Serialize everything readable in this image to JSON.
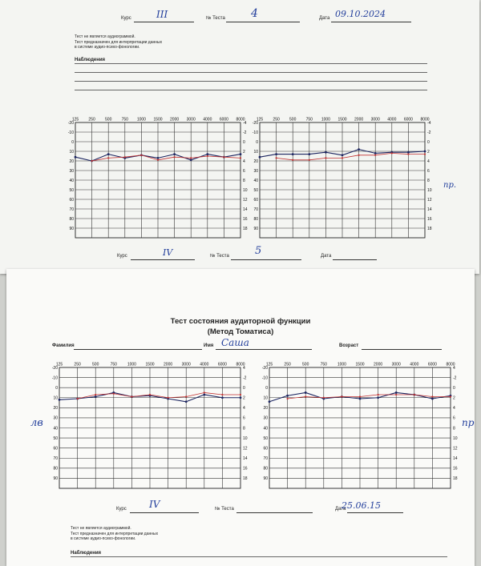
{
  "sheet1": {
    "header": {
      "course_label": "Курс",
      "course_value": "III",
      "test_no_label": "№ Теста",
      "test_no_value": "4",
      "date_label": "Дата",
      "date_value": "09.10.2024"
    },
    "notes": [
      "Тест не является аудиограммой.",
      "Тест предназначен для интерпретации данных",
      "в системе аудио-психо-фонологии."
    ],
    "observation_label": "Наблюдения",
    "left_chart": {
      "freqs": [
        "125",
        "250",
        "500",
        "750",
        "1000",
        "1500",
        "2000",
        "3000",
        "4000",
        "6000",
        "8000"
      ],
      "left_scale": [
        "-20",
        "-10",
        "0",
        "10",
        "20",
        "30",
        "40",
        "50",
        "60",
        "70",
        "80",
        "90"
      ],
      "right_scale": [
        "-4",
        "-2",
        "0",
        "2",
        "4",
        "6",
        "8",
        "10",
        "12",
        "14",
        "16",
        "18"
      ],
      "series": [
        {
          "color": "#1c2560",
          "values": [
            16,
            20,
            13,
            17,
            14,
            17,
            13,
            19,
            13,
            16,
            13
          ]
        },
        {
          "color": "#c03232",
          "values": [
            null,
            20,
            17,
            16,
            14,
            19,
            16,
            17,
            15,
            16,
            17
          ]
        }
      ]
    },
    "right_chart": {
      "freqs": [
        "125",
        "250",
        "500",
        "750",
        "1000",
        "1500",
        "2000",
        "3000",
        "4000",
        "6000",
        "8000"
      ],
      "left_scale": [
        "-20",
        "-10",
        "0",
        "10",
        "20",
        "30",
        "40",
        "50",
        "60",
        "70",
        "80",
        "90"
      ],
      "right_scale": [
        "-4",
        "-2",
        "0",
        "2",
        "4",
        "6",
        "8",
        "10",
        "12",
        "14",
        "16",
        "18"
      ],
      "series": [
        {
          "color": "#1c2560",
          "values": [
            16,
            13,
            13,
            13,
            11,
            14,
            8,
            12,
            11,
            11,
            10
          ]
        },
        {
          "color": "#c03232",
          "values": [
            null,
            17,
            19,
            19,
            17,
            17,
            14,
            14,
            12,
            13,
            13
          ]
        }
      ]
    },
    "margin_note": "пр.",
    "footer": {
      "course_label": "Курс",
      "course_value": "IV",
      "test_no_label": "№ Теста",
      "test_no_value": "5",
      "date_label": "Дата"
    }
  },
  "sheet2": {
    "title_line1": "Тест состояния аудиторной функции",
    "title_line2": "(Метод Томатиса)",
    "surname_label": "Фамилия",
    "name_label": "Имя",
    "name_value": "Саша",
    "age_label": "Возраст",
    "left_chart": {
      "freqs": [
        "125",
        "250",
        "500",
        "750",
        "1000",
        "1500",
        "2000",
        "3000",
        "4000",
        "6000",
        "8000"
      ],
      "left_scale": [
        "-20",
        "-10",
        "0",
        "10",
        "20",
        "30",
        "40",
        "50",
        "60",
        "70",
        "80",
        "90"
      ],
      "right_scale": [
        "4",
        "-2",
        "0",
        "2",
        "4",
        "6",
        "8",
        "10",
        "12",
        "14",
        "16",
        "18"
      ],
      "series": [
        {
          "color": "#1c2560",
          "values": [
            12,
            11,
            9,
            5,
            9,
            8,
            11,
            14,
            7,
            10,
            10
          ]
        },
        {
          "color": "#c03232",
          "values": [
            null,
            11,
            7,
            6,
            9,
            7,
            10,
            9,
            5,
            7,
            7
          ]
        }
      ]
    },
    "right_chart": {
      "freqs": [
        "125",
        "250",
        "500",
        "750",
        "1000",
        "1500",
        "2000",
        "3000",
        "4000",
        "6000",
        "8000"
      ],
      "left_scale": [
        "-20",
        "-10",
        "0",
        "10",
        "20",
        "30",
        "40",
        "50",
        "60",
        "70",
        "80",
        "90"
      ],
      "right_scale": [
        "4",
        "-2",
        "0",
        "2",
        "4",
        "6",
        "8",
        "10",
        "12",
        "14",
        "16",
        "18"
      ],
      "series": [
        {
          "color": "#1c2560",
          "values": [
            14,
            8,
            5,
            11,
            9,
            11,
            10,
            5,
            7,
            11,
            8
          ]
        },
        {
          "color": "#c03232",
          "values": [
            null,
            11,
            9,
            10,
            9,
            9,
            7,
            7,
            7,
            9,
            9
          ]
        }
      ]
    },
    "margin_left": "лв",
    "margin_right": "пр",
    "footer": {
      "course_label": "Курс",
      "course_value": "IV",
      "test_no_label": "№ Теста",
      "date_label": "Дата",
      "date_value": "25.06.15"
    },
    "notes": [
      "Тест не является аудиограммой.",
      "Тест предназначен для интерпретации данных",
      "в системе аудио-психо-фонологии."
    ],
    "observation_label": "Наблюдения"
  }
}
